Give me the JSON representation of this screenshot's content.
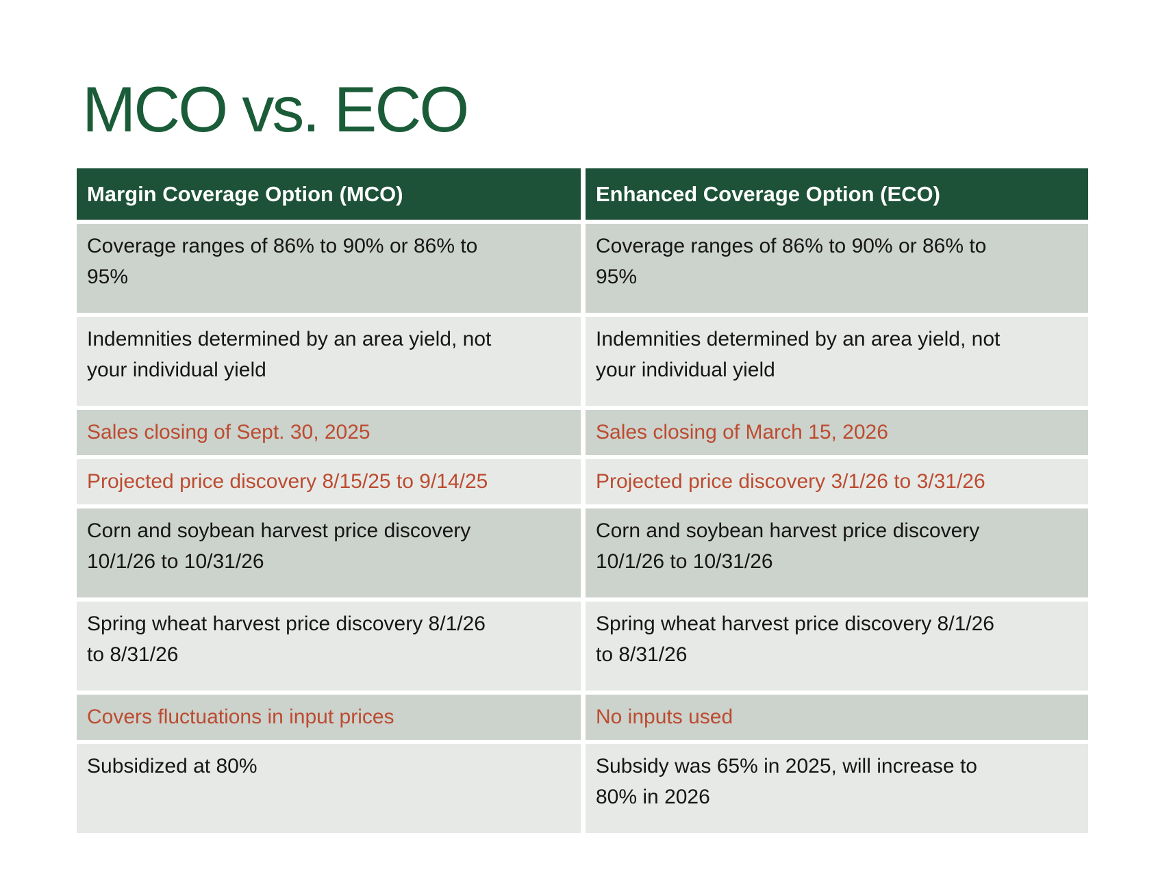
{
  "slide": {
    "title": "MCO vs. ECO"
  },
  "table": {
    "headers": [
      {
        "label": "Margin Coverage Option (MCO)"
      },
      {
        "label": "Enhanced Coverage Option (ECO)"
      }
    ],
    "rows": [
      {
        "mco": "Coverage ranges of 86% to 90% or 86% to\n95%",
        "eco": "Coverage ranges of 86% to 90% or 86% to\n95%"
      },
      {
        "mco": "Indemnities determined by an area yield, not\nyour individual yield",
        "eco": "Indemnities determined by an area yield, not\nyour individual yield"
      },
      {
        "mco": "Sales closing of Sept. 30, 2025",
        "eco": "Sales closing of March 15, 2026"
      },
      {
        "mco": "Projected price discovery 8/15/25 to 9/14/25",
        "eco": "Projected price discovery 3/1/26 to 3/31/26"
      },
      {
        "mco": "Corn and soybean harvest price discovery\n10/1/26 to 10/31/26",
        "eco": "Corn and soybean harvest price discovery\n10/1/26 to 10/31/26"
      },
      {
        "mco": "Spring wheat harvest price discovery 8/1/26\nto 8/31/26",
        "eco": "Spring wheat harvest price discovery 8/1/26\nto 8/31/26"
      },
      {
        "mco": "Covers fluctuations in input prices",
        "eco": "No inputs used"
      },
      {
        "mco": "Subsidized at 80%",
        "eco": "Subsidy was 65% in 2025, will increase to\n80% in 2026"
      }
    ]
  },
  "colors": {
    "title": "#1a5c38",
    "header_bg": "#1d5238",
    "row_dark": "#ccd2cc",
    "row_light": "#e6e9e6",
    "accent_red": "#bc4b30"
  }
}
